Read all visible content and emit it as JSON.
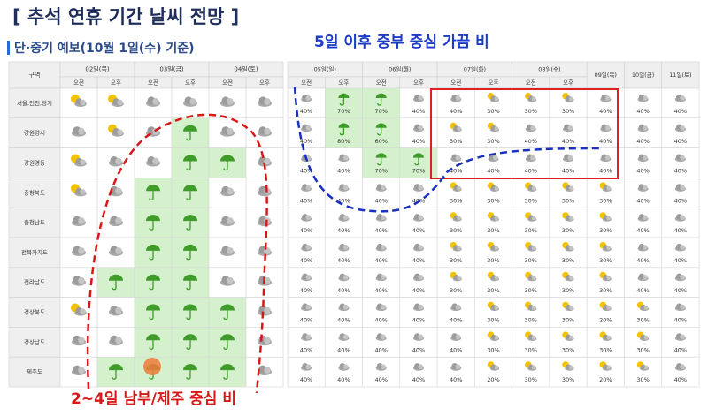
{
  "header": {
    "title": "[ 추석 연휴 기간 날씨 전망 ]",
    "subtitle": "단·중기 예보(10월 1일(수) 기준)"
  },
  "annotations": [
    "5일 이후 중부 중심 가끔 비",
    "2~4일 남부/제주 중심 비"
  ],
  "short_table": {
    "corner": "구역",
    "days": [
      "02일(목)",
      "03일(금)",
      "04일(토)"
    ],
    "periods": [
      "오전",
      "오후",
      "오전",
      "오후",
      "오전",
      "오후"
    ],
    "regions": [
      "서울,인천,경기",
      "강원영서",
      "강원영동",
      "충청북도",
      "충청남도",
      "전북자치도",
      "전라남도",
      "경상북도",
      "경상남도",
      "제주도"
    ]
  },
  "mid_table": {
    "days": [
      "05일(일)",
      "06일(월)",
      "07일(화)",
      "08일(수)",
      "09일(목)",
      "10일(금)",
      "11일(토)"
    ],
    "periods": [
      "오전",
      "오후",
      "오전",
      "오후",
      "오전",
      "오후",
      "오전",
      "오후"
    ],
    "rows": [
      [
        "40%",
        "70%",
        "70%",
        "40%",
        "40%",
        "30%",
        "30%",
        "30%",
        "40%",
        "40%",
        "40%"
      ],
      [
        "40%",
        "80%",
        "60%",
        "40%",
        "30%",
        "30%",
        "40%",
        "40%",
        "40%",
        "40%",
        "40%"
      ],
      [
        "40%",
        "40%",
        "70%",
        "70%",
        "40%",
        "40%",
        "40%",
        "40%",
        "40%",
        "40%",
        "40%"
      ],
      [
        "40%",
        "40%",
        "40%",
        "40%",
        "30%",
        "30%",
        "30%",
        "30%",
        "30%",
        "40%",
        "40%"
      ],
      [
        "40%",
        "40%",
        "40%",
        "40%",
        "30%",
        "30%",
        "30%",
        "30%",
        "30%",
        "40%",
        "40%"
      ],
      [
        "40%",
        "40%",
        "40%",
        "40%",
        "30%",
        "30%",
        "30%",
        "30%",
        "30%",
        "40%",
        "40%"
      ],
      [
        "40%",
        "40%",
        "40%",
        "40%",
        "30%",
        "30%",
        "30%",
        "30%",
        "30%",
        "40%",
        "40%"
      ],
      [
        "40%",
        "40%",
        "40%",
        "40%",
        "40%",
        "30%",
        "30%",
        "30%",
        "20%",
        "30%",
        "40%"
      ],
      [
        "40%",
        "40%",
        "40%",
        "40%",
        "40%",
        "30%",
        "30%",
        "30%",
        "30%",
        "30%",
        "40%"
      ],
      [
        "40%",
        "40%",
        "40%",
        "40%",
        "40%",
        "20%",
        "30%",
        "30%",
        "20%",
        "30%",
        "40%"
      ]
    ]
  }
}
